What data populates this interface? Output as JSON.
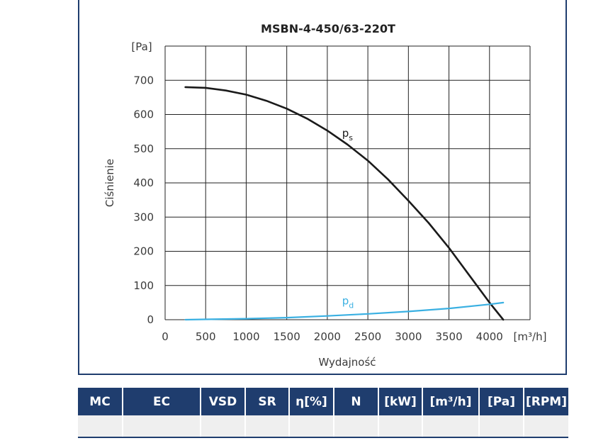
{
  "chart_data": {
    "type": "line",
    "title": "MSBN-4-450/63-220T",
    "xlabel": "Wydajność",
    "ylabel": "Ciśnienie",
    "x_unit": "[m³/h]",
    "y_unit": "[Pa]",
    "xlim": [
      0,
      4500
    ],
    "ylim": [
      0,
      800
    ],
    "x_ticks": [
      "0",
      "500",
      "1000",
      "1500",
      "2000",
      "2500",
      "3000",
      "3500",
      "4000"
    ],
    "y_ticks": [
      "0",
      "100",
      "200",
      "300",
      "400",
      "500",
      "600",
      "700"
    ],
    "grid": true,
    "series": [
      {
        "name": "ps",
        "label_main": "p",
        "label_sub": "s",
        "color": "#1a1a1a",
        "x": [
          250,
          500,
          750,
          1000,
          1250,
          1500,
          1750,
          2000,
          2250,
          2500,
          2750,
          3000,
          3250,
          3500,
          3750,
          4000,
          4170
        ],
        "y": [
          680,
          678,
          670,
          658,
          640,
          617,
          588,
          553,
          512,
          465,
          410,
          348,
          283,
          210,
          130,
          50,
          0
        ]
      },
      {
        "name": "pd",
        "label_main": "p",
        "label_sub": "d",
        "color": "#3ab0e2",
        "x": [
          250,
          500,
          1000,
          1500,
          2000,
          2500,
          3000,
          3500,
          4000,
          4170
        ],
        "y": [
          0,
          1,
          3,
          6,
          11,
          17,
          24,
          33,
          45,
          50
        ]
      }
    ]
  },
  "table": {
    "headers": [
      "MC",
      "EC",
      "VSD",
      "SR",
      "η[%]",
      "N",
      "[kW]",
      "[m³/h]",
      "[Pa]",
      "[RPM]"
    ],
    "row": [
      "",
      "",
      "",
      "",
      "",
      "",
      "",
      "",
      "",
      ""
    ]
  }
}
